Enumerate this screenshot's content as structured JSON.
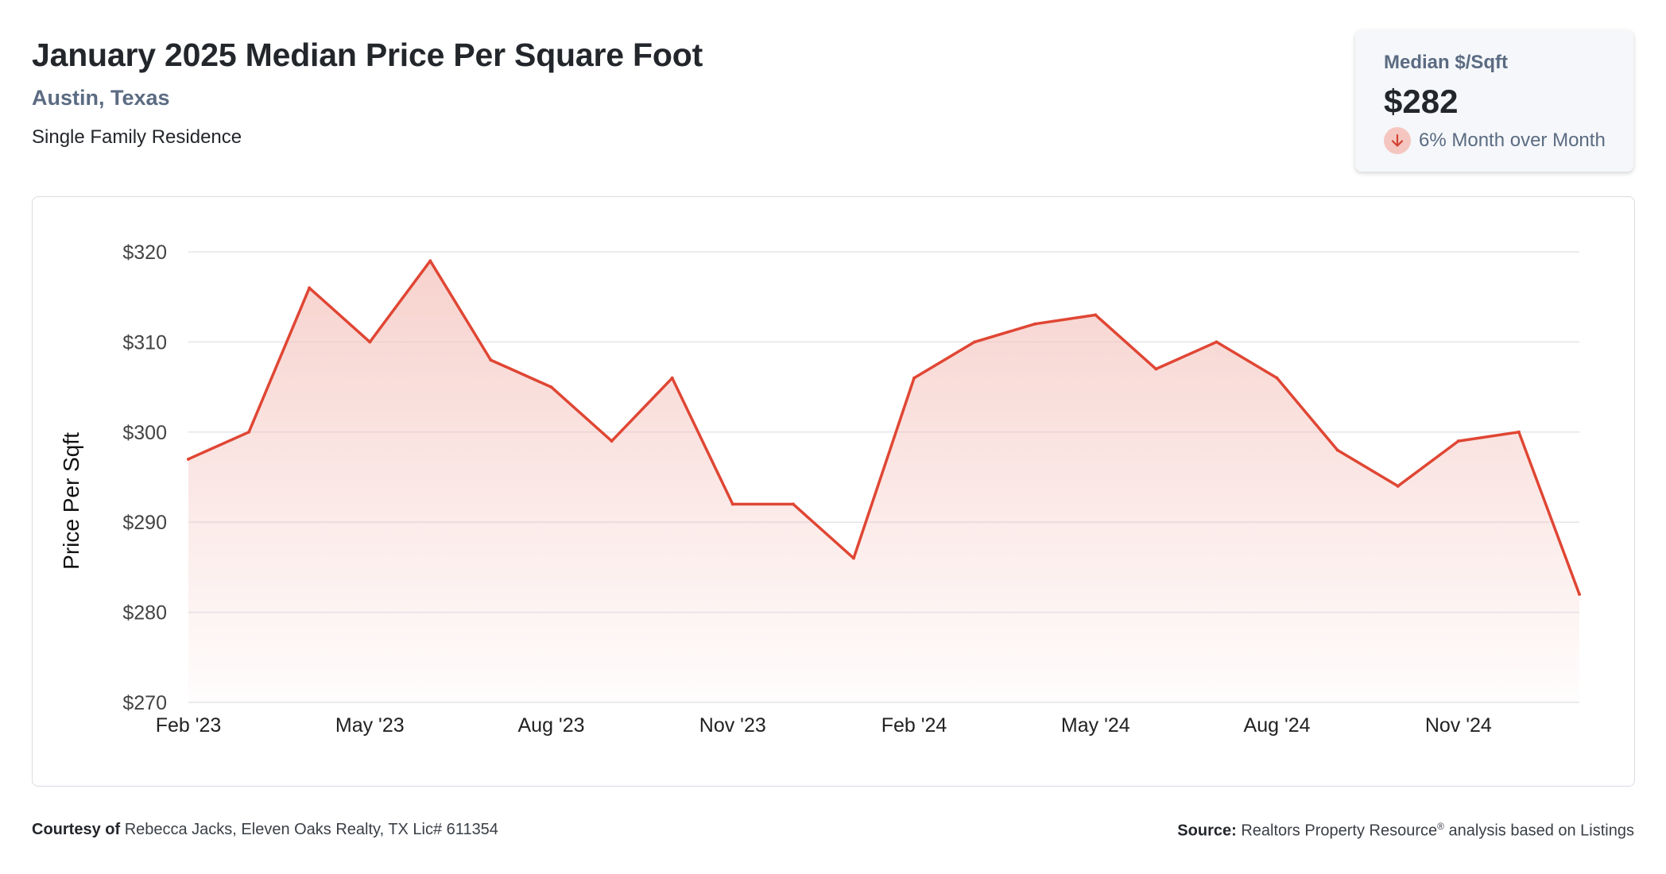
{
  "header": {
    "title": "January 2025 Median Price Per Square Foot",
    "location": "Austin, Texas",
    "subtitle": "Single Family Residence"
  },
  "stat": {
    "label": "Median $/Sqft",
    "value": "$282",
    "change": "6% Month over Month",
    "direction": "down"
  },
  "footer": {
    "courtesy_label": "Courtesy of",
    "courtesy_text": "Rebecca Jacks, Eleven Oaks Realty, TX Lic# 611354",
    "source_label": "Source:",
    "source_text": "Realtors Property Resource",
    "source_mark": "®",
    "source_suffix": "analysis based on Listings"
  },
  "colors": {
    "line": "#e04634",
    "fill_top": "#f4c3bd",
    "grid": "#e3e5ea"
  },
  "chart_data": {
    "type": "area",
    "ylabel": "Price Per Sqft",
    "xlabel": "",
    "ylim": [
      270,
      320
    ],
    "yticks": [
      270,
      280,
      290,
      300,
      310,
      320
    ],
    "ytick_labels": [
      "$270",
      "$280",
      "$290",
      "$300",
      "$310",
      "$320"
    ],
    "x": [
      "Feb '23",
      "Mar '23",
      "Apr '23",
      "May '23",
      "Jun '23",
      "Jul '23",
      "Aug '23",
      "Sep '23",
      "Oct '23",
      "Nov '23",
      "Dec '23",
      "Jan '24",
      "Feb '24",
      "Mar '24",
      "Apr '24",
      "May '24",
      "Jun '24",
      "Jul '24",
      "Aug '24",
      "Sep '24",
      "Oct '24",
      "Nov '24",
      "Dec '24",
      "Jan '25"
    ],
    "xtick_labels": [
      "Feb '23",
      "May '23",
      "Aug '23",
      "Nov '23",
      "Feb '24",
      "May '24",
      "Aug '24",
      "Nov '24"
    ],
    "xtick_indices": [
      0,
      3,
      6,
      9,
      12,
      15,
      18,
      21
    ],
    "values": [
      297,
      300,
      316,
      310,
      319,
      308,
      305,
      299,
      306,
      292,
      292,
      286,
      306,
      310,
      312,
      313,
      307,
      310,
      306,
      298,
      294,
      299,
      300,
      282
    ],
    "grid": true
  }
}
